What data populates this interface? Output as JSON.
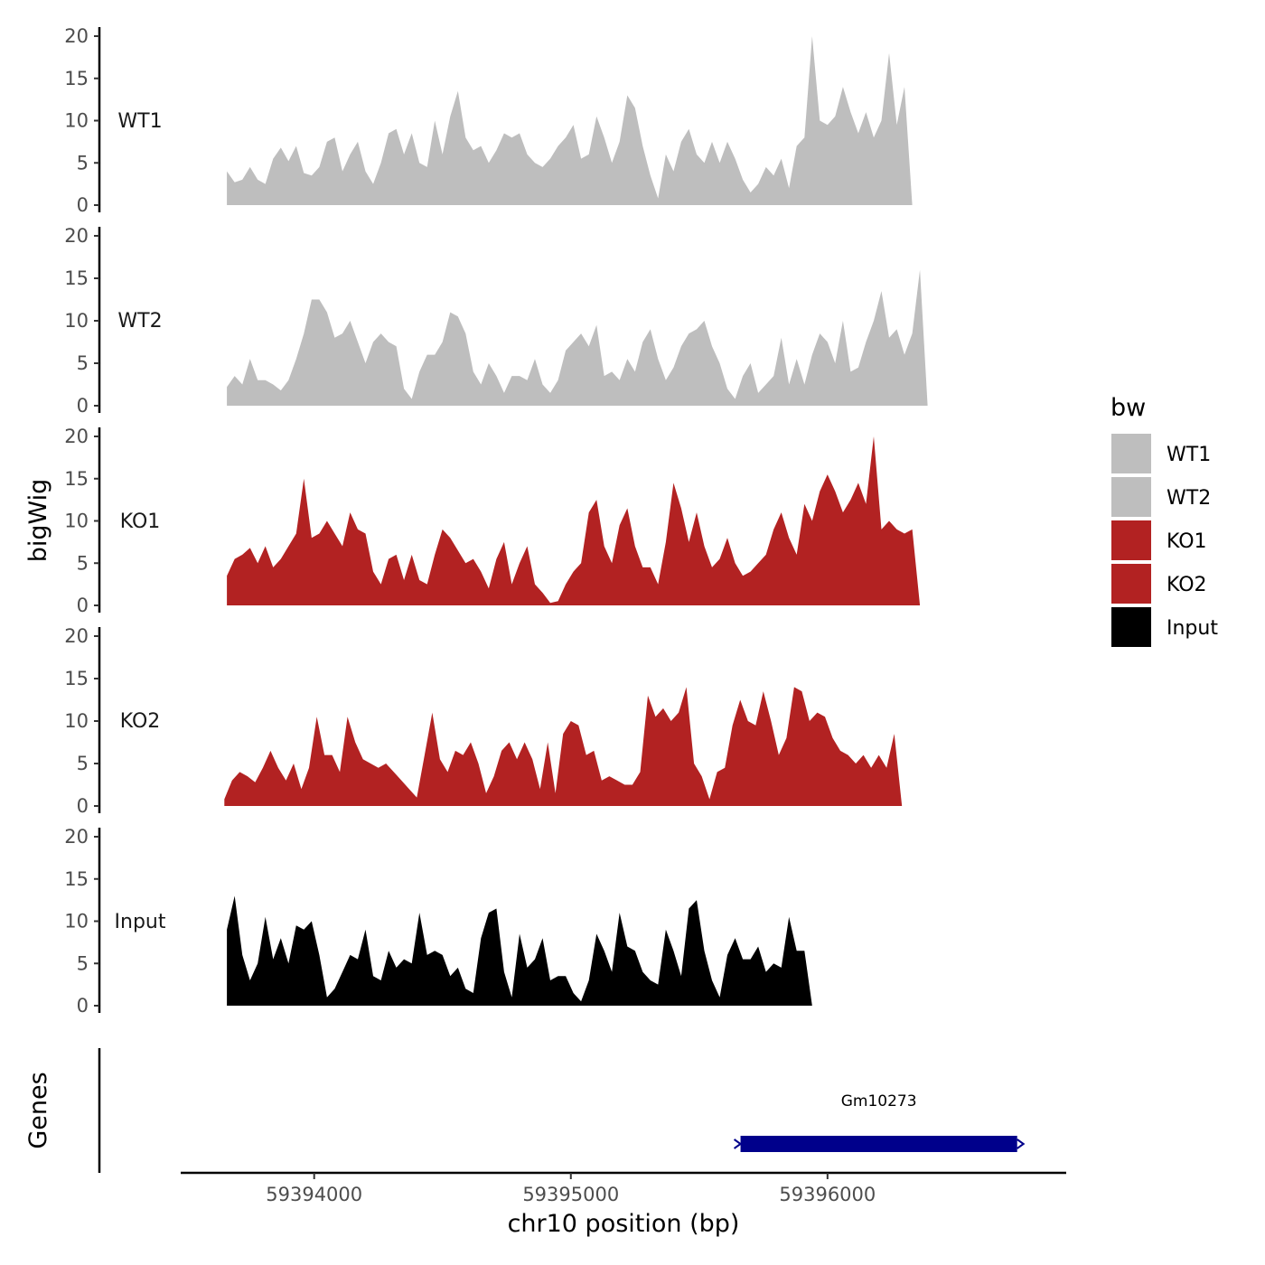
{
  "chart_data": {
    "type": "area",
    "ylabel": "bigWig",
    "xlabel": "chr10 position (bp)",
    "ylim": [
      0,
      20
    ],
    "yticks": [
      0,
      5,
      10,
      15,
      20
    ],
    "xlim": [
      59393480,
      59396930
    ],
    "xticks": [
      59394000,
      59395000,
      59396000
    ],
    "xtick_labels": [
      "59394000",
      "59395000",
      "59396000"
    ],
    "genes_label": "Genes",
    "legend": {
      "title": "bw",
      "position": "right",
      "entries": [
        {
          "label": "WT1",
          "color": "#bebebe"
        },
        {
          "label": "WT2",
          "color": "#bebebe"
        },
        {
          "label": "KO1",
          "color": "#b22222"
        },
        {
          "label": "KO2",
          "color": "#b22222"
        },
        {
          "label": "Input",
          "color": "#000000"
        }
      ]
    },
    "tracks": [
      {
        "name": "WT1",
        "color": "#bebebe",
        "x": [
          59393660,
          59393690,
          59393720,
          59393750,
          59393780,
          59393810,
          59393840,
          59393870,
          59393900,
          59393930,
          59393960,
          59393990,
          59394020,
          59394050,
          59394080,
          59394110,
          59394140,
          59394170,
          59394200,
          59394230,
          59394260,
          59394290,
          59394320,
          59394350,
          59394380,
          59394410,
          59394440,
          59394470,
          59394500,
          59394530,
          59394560,
          59394590,
          59394620,
          59394650,
          59394680,
          59394710,
          59394740,
          59394770,
          59394800,
          59394830,
          59394860,
          59394890,
          59394920,
          59394950,
          59394980,
          59395010,
          59395040,
          59395070,
          59395100,
          59395130,
          59395160,
          59395190,
          59395220,
          59395250,
          59395280,
          59395310,
          59395340,
          59395370,
          59395400,
          59395430,
          59395460,
          59395490,
          59395520,
          59395550,
          59395580,
          59395610,
          59395640,
          59395670,
          59395700,
          59395730,
          59395760,
          59395790,
          59395820,
          59395850,
          59395880,
          59395910,
          59395940,
          59395970,
          59396000,
          59396030,
          59396060,
          59396090,
          59396120,
          59396150,
          59396180,
          59396210,
          59396240,
          59396270,
          59396300,
          59396330,
          59396360,
          59396390,
          59396420,
          59396450,
          59396480,
          59396510,
          59396540,
          59396570,
          59396600,
          59396630,
          59396660,
          59396690,
          59396720,
          59396750
        ],
        "y": [
          4.0,
          2.7,
          3.0,
          4.5,
          3.0,
          2.5,
          5.5,
          6.8,
          5.2,
          7.0,
          3.8,
          3.5,
          4.5,
          7.5,
          8.0,
          4.0,
          6.0,
          7.5,
          4.0,
          2.5,
          5.0,
          8.5,
          9.0,
          6.0,
          8.5,
          5.0,
          4.5,
          10.0,
          6.0,
          10.5,
          13.5,
          8.0,
          6.5,
          7.0,
          5.0,
          6.5,
          8.5,
          8.0,
          8.5,
          6.0,
          5.0,
          4.5,
          5.5,
          7.0,
          8.0,
          9.5,
          5.5,
          6.0,
          10.5,
          8.0,
          5.0,
          7.5,
          13.0,
          11.5,
          7.0,
          3.5,
          0.8,
          6.0,
          4.0,
          7.5,
          9.0,
          6.0,
          5.0,
          7.5,
          5.0,
          7.5,
          5.5,
          3.0,
          1.5,
          2.5,
          4.5,
          3.5,
          5.5,
          2.0,
          7.0,
          8.0,
          20.0,
          10.0,
          9.5,
          10.5,
          14.0,
          11.0,
          8.5,
          11.0,
          8.0,
          10.0,
          18.0,
          9.5,
          14.0,
          0.0,
          0.0,
          0.0,
          0.0,
          0.0,
          0.0,
          0.0,
          0.0,
          0.0,
          0.0,
          0.0,
          0.0,
          0.0,
          0.0,
          0.0
        ]
      },
      {
        "name": "WT2",
        "color": "#bebebe",
        "x": [
          59393660,
          59393690,
          59393720,
          59393750,
          59393780,
          59393810,
          59393840,
          59393870,
          59393900,
          59393930,
          59393960,
          59393990,
          59394020,
          59394050,
          59394080,
          59394110,
          59394140,
          59394170,
          59394200,
          59394230,
          59394260,
          59394290,
          59394320,
          59394350,
          59394380,
          59394410,
          59394440,
          59394470,
          59394500,
          59394530,
          59394560,
          59394590,
          59394620,
          59394650,
          59394680,
          59394710,
          59394740,
          59394770,
          59394800,
          59394830,
          59394860,
          59394890,
          59394920,
          59394950,
          59394980,
          59395010,
          59395040,
          59395070,
          59395100,
          59395130,
          59395160,
          59395190,
          59395220,
          59395250,
          59395280,
          59395310,
          59395340,
          59395370,
          59395400,
          59395430,
          59395460,
          59395490,
          59395520,
          59395550,
          59395580,
          59395610,
          59395640,
          59395670,
          59395700,
          59395730,
          59395760,
          59395790,
          59395820,
          59395850,
          59395880,
          59395910,
          59395940,
          59395970,
          59396000,
          59396030,
          59396060,
          59396090,
          59396120,
          59396150,
          59396180,
          59396210,
          59396240,
          59396270,
          59396300,
          59396330,
          59396360,
          59396390,
          59396420,
          59396450,
          59396480,
          59396510,
          59396540,
          59396570,
          59396600,
          59396630,
          59396660,
          59396690,
          59396720,
          59396750
        ],
        "y": [
          2.2,
          3.5,
          2.5,
          5.5,
          3.0,
          3.0,
          2.5,
          1.8,
          3.0,
          5.5,
          8.5,
          12.5,
          12.5,
          11.0,
          8.0,
          8.5,
          10.0,
          7.5,
          5.0,
          7.5,
          8.5,
          7.5,
          7.0,
          2.0,
          0.8,
          4.0,
          6.0,
          6.0,
          7.5,
          11.0,
          10.5,
          8.5,
          4.0,
          2.5,
          5.0,
          3.5,
          1.5,
          3.5,
          3.5,
          3.0,
          5.5,
          2.5,
          1.5,
          3.0,
          6.5,
          7.5,
          8.5,
          7.0,
          9.5,
          3.5,
          4.0,
          3.0,
          5.5,
          4.0,
          7.5,
          9.0,
          5.5,
          3.0,
          4.5,
          7.0,
          8.5,
          9.0,
          10.0,
          7.0,
          5.0,
          2.0,
          0.8,
          3.5,
          5.0,
          1.5,
          2.5,
          3.5,
          8.0,
          2.5,
          5.5,
          2.5,
          6.0,
          8.5,
          7.5,
          5.0,
          10.0,
          4.0,
          4.5,
          7.5,
          10.0,
          13.5,
          8.0,
          9.0,
          6.0,
          8.5,
          16.0,
          0.0,
          0.0,
          0.0,
          0.0,
          0.0,
          0.0,
          0.0,
          0.0,
          0.0,
          0.0,
          0.0,
          0.0,
          0.0
        ]
      },
      {
        "name": "KO1",
        "color": "#b22222",
        "x": [
          59393660,
          59393690,
          59393720,
          59393750,
          59393780,
          59393810,
          59393840,
          59393870,
          59393900,
          59393930,
          59393960,
          59393990,
          59394020,
          59394050,
          59394080,
          59394110,
          59394140,
          59394170,
          59394200,
          59394230,
          59394260,
          59394290,
          59394320,
          59394350,
          59394380,
          59394410,
          59394440,
          59394470,
          59394500,
          59394530,
          59394560,
          59394590,
          59394620,
          59394650,
          59394680,
          59394710,
          59394740,
          59394770,
          59394800,
          59394830,
          59394860,
          59394890,
          59394920,
          59394950,
          59394980,
          59395010,
          59395040,
          59395070,
          59395100,
          59395130,
          59395160,
          59395190,
          59395220,
          59395250,
          59395280,
          59395310,
          59395340,
          59395370,
          59395400,
          59395430,
          59395460,
          59395490,
          59395520,
          59395550,
          59395580,
          59395610,
          59395640,
          59395670,
          59395700,
          59395730,
          59395760,
          59395790,
          59395820,
          59395850,
          59395880,
          59395910,
          59395940,
          59395970,
          59396000,
          59396030,
          59396060,
          59396090,
          59396120,
          59396150,
          59396180,
          59396210,
          59396240,
          59396270,
          59396300,
          59396330,
          59396360,
          59396390,
          59396420,
          59396450,
          59396480,
          59396510,
          59396540,
          59396570,
          59396600,
          59396630,
          59396660,
          59396690,
          59396720,
          59396750
        ],
        "y": [
          3.5,
          5.5,
          6.0,
          6.8,
          5.0,
          7.0,
          4.5,
          5.5,
          7.0,
          8.5,
          15.0,
          8.0,
          8.5,
          10.0,
          8.5,
          7.0,
          11.0,
          9.0,
          8.5,
          4.0,
          2.5,
          5.5,
          6.0,
          3.0,
          6.0,
          3.0,
          2.5,
          6.0,
          9.0,
          8.0,
          6.5,
          5.0,
          5.5,
          4.0,
          2.0,
          5.5,
          7.5,
          2.5,
          5.0,
          7.0,
          2.5,
          1.5,
          0.3,
          0.5,
          2.5,
          4.0,
          5.0,
          11.0,
          12.5,
          7.0,
          5.0,
          9.5,
          11.5,
          7.0,
          4.5,
          4.5,
          2.5,
          7.5,
          14.5,
          11.5,
          7.5,
          11.0,
          7.0,
          4.5,
          5.5,
          8.0,
          5.0,
          3.5,
          4.0,
          5.0,
          6.0,
          9.0,
          11.0,
          8.0,
          6.0,
          12.0,
          10.0,
          13.5,
          15.5,
          13.5,
          11.0,
          12.5,
          14.5,
          12.0,
          20.0,
          9.0,
          10.0,
          9.0,
          8.5,
          9.0,
          0.0,
          0.0,
          0.0,
          0.0,
          0.0,
          0.0,
          0.0,
          0.0,
          0.0,
          0.0,
          0.0,
          0.0,
          0.0,
          0.0
        ]
      },
      {
        "name": "KO2",
        "color": "#b22222",
        "x": [
          59393650,
          59393680,
          59393710,
          59393740,
          59393770,
          59393800,
          59393830,
          59393860,
          59393890,
          59393920,
          59393950,
          59393980,
          59394010,
          59394040,
          59394070,
          59394100,
          59394130,
          59394160,
          59394190,
          59394220,
          59394250,
          59394280,
          59394310,
          59394340,
          59394370,
          59394400,
          59394430,
          59394460,
          59394490,
          59394520,
          59394550,
          59394580,
          59394610,
          59394640,
          59394670,
          59394700,
          59394730,
          59394760,
          59394790,
          59394820,
          59394850,
          59394880,
          59394910,
          59394940,
          59394970,
          59395000,
          59395030,
          59395060,
          59395090,
          59395120,
          59395150,
          59395180,
          59395210,
          59395240,
          59395270,
          59395300,
          59395330,
          59395360,
          59395390,
          59395420,
          59395450,
          59395480,
          59395510,
          59395540,
          59395570,
          59395600,
          59395630,
          59395660,
          59395690,
          59395720,
          59395750,
          59395780,
          59395810,
          59395840,
          59395870,
          59395900,
          59395930,
          59395960,
          59395990,
          59396020,
          59396050,
          59396080,
          59396110,
          59396140,
          59396170,
          59396200,
          59396230,
          59396260,
          59396290,
          59396320,
          59396350,
          59396380,
          59396410,
          59396440,
          59396470,
          59396500,
          59396530,
          59396560,
          59396590,
          59396620,
          59396650,
          59396680,
          59396710,
          59396740
        ],
        "y": [
          0.8,
          3.0,
          4.0,
          3.5,
          2.8,
          4.5,
          6.5,
          4.5,
          3.0,
          5.0,
          2.0,
          4.5,
          10.5,
          6.0,
          6.0,
          4.0,
          10.5,
          7.5,
          5.5,
          5.0,
          4.5,
          5.0,
          4.0,
          3.0,
          2.0,
          1.0,
          6.0,
          11.0,
          5.5,
          4.0,
          6.5,
          6.0,
          7.5,
          5.0,
          1.5,
          3.5,
          6.5,
          7.5,
          5.5,
          7.5,
          5.5,
          2.0,
          7.5,
          1.5,
          8.5,
          10.0,
          9.5,
          6.0,
          6.5,
          3.0,
          3.5,
          3.0,
          2.5,
          2.5,
          4.0,
          13.0,
          10.5,
          11.5,
          10.0,
          11.0,
          14.0,
          5.0,
          3.5,
          0.8,
          4.0,
          4.5,
          9.5,
          12.5,
          10.0,
          9.5,
          13.5,
          10.0,
          6.0,
          8.0,
          14.0,
          13.5,
          10.0,
          11.0,
          10.5,
          8.0,
          6.5,
          6.0,
          5.0,
          6.0,
          4.5,
          6.0,
          4.5,
          8.5,
          0.0,
          0.0,
          0.0,
          0.0,
          0.0,
          0.0,
          0.0,
          0.0,
          0.0,
          0.0,
          0.0,
          0.0,
          0.0,
          0.0,
          0.0,
          0.0
        ]
      },
      {
        "name": "Input",
        "color": "#000000",
        "x": [
          59393660,
          59393690,
          59393720,
          59393750,
          59393780,
          59393810,
          59393840,
          59393870,
          59393900,
          59393930,
          59393960,
          59393990,
          59394020,
          59394050,
          59394080,
          59394110,
          59394140,
          59394170,
          59394200,
          59394230,
          59394260,
          59394290,
          59394320,
          59394350,
          59394380,
          59394410,
          59394440,
          59394470,
          59394500,
          59394530,
          59394560,
          59394590,
          59394620,
          59394650,
          59394680,
          59394710,
          59394740,
          59394770,
          59394800,
          59394830,
          59394860,
          59394890,
          59394920,
          59394950,
          59394980,
          59395010,
          59395040,
          59395070,
          59395100,
          59395130,
          59395160,
          59395190,
          59395220,
          59395250,
          59395280,
          59395310,
          59395340,
          59395370,
          59395400,
          59395430,
          59395460,
          59395490,
          59395520,
          59395550,
          59395580,
          59395610,
          59395640,
          59395670,
          59395700,
          59395730,
          59395760,
          59395790,
          59395820,
          59395850,
          59395880,
          59395910,
          59395940,
          59395970,
          59396000,
          59396030,
          59396060,
          59396090,
          59396120,
          59396150,
          59396180,
          59396210,
          59396240,
          59396270,
          59396300,
          59396330,
          59396360,
          59396390,
          59396420,
          59396450,
          59396480,
          59396510,
          59396540,
          59396570,
          59396600,
          59396630,
          59396660,
          59396690,
          59396720,
          59396750
        ],
        "y": [
          9.0,
          13.0,
          6.0,
          3.0,
          5.0,
          10.5,
          5.5,
          8.0,
          5.0,
          9.5,
          9.0,
          10.0,
          6.0,
          1.0,
          2.0,
          4.0,
          6.0,
          5.5,
          9.0,
          3.5,
          3.0,
          6.5,
          4.5,
          5.5,
          5.0,
          11.0,
          6.0,
          6.5,
          6.0,
          3.5,
          4.5,
          2.0,
          1.5,
          8.0,
          11.0,
          11.5,
          4.0,
          1.0,
          8.5,
          4.5,
          5.5,
          8.0,
          3.0,
          3.5,
          3.5,
          1.5,
          0.5,
          3.0,
          8.5,
          6.5,
          4.0,
          11.0,
          7.0,
          6.5,
          4.0,
          3.0,
          2.5,
          9.0,
          6.5,
          3.5,
          11.5,
          12.5,
          6.5,
          3.0,
          1.0,
          6.0,
          8.0,
          5.5,
          5.5,
          7.0,
          4.0,
          5.0,
          4.5,
          10.5,
          6.5,
          6.5,
          0.0,
          0.0,
          0.0,
          0.0,
          0.0,
          0.0,
          0.0,
          0.0,
          0.0,
          0.0,
          0.0,
          0.0,
          0.0,
          0.0,
          0.0,
          0.0,
          0.0,
          0.0,
          0.0,
          0.0,
          0.0,
          0.0,
          0.0,
          0.0,
          0.0,
          0.0,
          0.0,
          0.0
        ]
      }
    ],
    "genes": [
      {
        "name": "Gm10273",
        "start": 59395640,
        "end": 59396760,
        "color": "#00008b"
      }
    ]
  }
}
